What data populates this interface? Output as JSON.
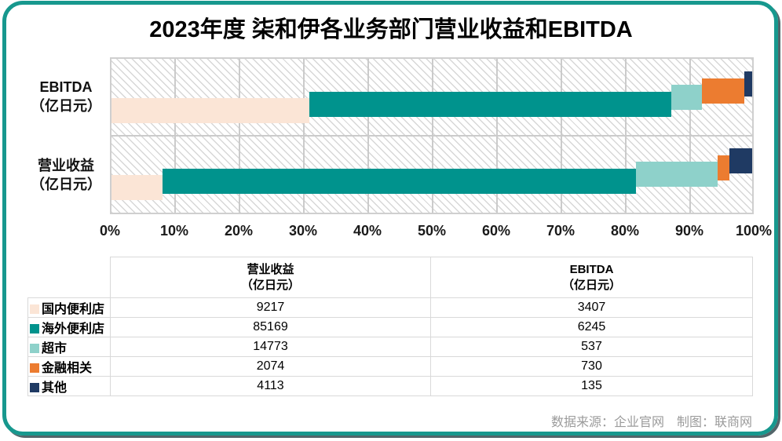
{
  "title": "2023年度 柒和伊各业务部门营业收益和EBITDA",
  "chart_data": {
    "type": "bar",
    "subtype": "horizontal-percent-stacked",
    "title": "2023年度 柒和伊各业务部门营业收益和EBITDA",
    "series_names": [
      "国内便利店",
      "海外便利店",
      "超市",
      "金融相关",
      "其他"
    ],
    "series_colors": [
      "#fbe5d6",
      "#00938d",
      "#8ed1ca",
      "#ec7c30",
      "#1f3a63"
    ],
    "bars": [
      {
        "label": "EBITDA",
        "unit": "（亿日元）",
        "values": [
          3407,
          6245,
          537,
          730,
          135
        ]
      },
      {
        "label": "营业收益",
        "unit": "（亿日元）",
        "values": [
          9217,
          85169,
          14773,
          2074,
          4113
        ]
      }
    ],
    "x_ticks": [
      "0%",
      "10%",
      "20%",
      "30%",
      "40%",
      "50%",
      "60%",
      "70%",
      "80%",
      "90%",
      "100%"
    ],
    "xlim": [
      0,
      100
    ],
    "grid": true,
    "background_pattern": "diagonal-hatch",
    "legend_position": "table-left-column"
  },
  "table": {
    "col_headers": [
      {
        "line1": "营业收益",
        "line2": "（亿日元）"
      },
      {
        "line1": "EBITDA",
        "line2": "（亿日元）"
      }
    ],
    "rows": [
      {
        "label": "国内便利店",
        "revenue": "9217",
        "ebitda": "3407"
      },
      {
        "label": "海外便利店",
        "revenue": "85169",
        "ebitda": "6245"
      },
      {
        "label": "超市",
        "revenue": "14773",
        "ebitda": "537"
      },
      {
        "label": "金融相关",
        "revenue": "2074",
        "ebitda": "730"
      },
      {
        "label": "其他",
        "revenue": "4113",
        "ebitda": "135"
      }
    ]
  },
  "footer": {
    "source": "数据来源：企业官网　制图：联商网"
  },
  "colors": {
    "frame": "#17988e",
    "grid_line": "#cbcbcb",
    "table_border": "#d9d9d9",
    "footer_text": "#9b9b9b"
  }
}
